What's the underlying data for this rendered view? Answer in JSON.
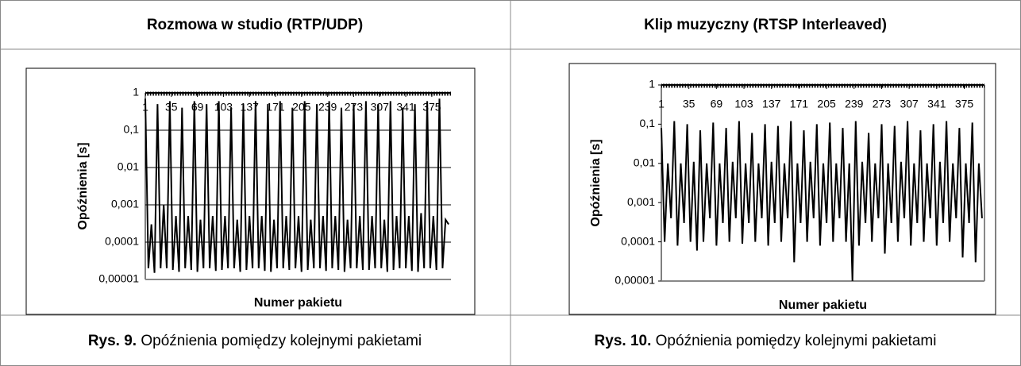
{
  "table": {
    "headers": [
      "Rozmowa w studio (RTP/UDP)",
      "Klip muzyczny (RTSP Interleaved)"
    ],
    "captions": [
      {
        "label": "Rys. 9.",
        "text": "Opóźnienia pomiędzy kolejnymi pakietami"
      },
      {
        "label": "Rys. 10.",
        "text": "Opóźnienia pomiędzy kolejnymi pakietami"
      }
    ]
  },
  "chart_data": [
    {
      "type": "line",
      "x_label": "Numer pakietu",
      "y_label": "Opóźnienia [s]",
      "log_scale": true,
      "grid": true,
      "xlim": [
        1,
        400
      ],
      "xticks": [
        1,
        35,
        69,
        103,
        137,
        171,
        205,
        239,
        273,
        307,
        341,
        375
      ],
      "ylim": [
        1e-05,
        1
      ],
      "yticks": [
        {
          "value": 1e-05,
          "label": "0,00001"
        },
        {
          "value": 0.0001,
          "label": "0,0001"
        },
        {
          "value": 0.001,
          "label": "0,001"
        },
        {
          "value": 0.01,
          "label": "0,01"
        },
        {
          "value": 0.1,
          "label": "0,1"
        },
        1
      ],
      "x": [
        1,
        5,
        9,
        13,
        17,
        21,
        25,
        29,
        33,
        37,
        41,
        45,
        49,
        53,
        57,
        61,
        65,
        69,
        73,
        77,
        81,
        85,
        89,
        93,
        97,
        101,
        105,
        109,
        113,
        117,
        121,
        125,
        129,
        133,
        137,
        141,
        145,
        149,
        153,
        157,
        161,
        165,
        169,
        173,
        177,
        181,
        185,
        189,
        193,
        197,
        201,
        205,
        209,
        213,
        217,
        221,
        225,
        229,
        233,
        237,
        241,
        245,
        249,
        253,
        257,
        261,
        265,
        269,
        273,
        277,
        281,
        285,
        289,
        293,
        297,
        301,
        305,
        309,
        313,
        317,
        321,
        325,
        329,
        333,
        337,
        341,
        345,
        349,
        353,
        357,
        361,
        365,
        369,
        373,
        377,
        381,
        385,
        389,
        393,
        397
      ],
      "series": [
        {
          "name": null,
          "color": "#000000",
          "values": [
            0.7,
            2e-05,
            0.0003,
            1.5e-05,
            0.5,
            2e-05,
            0.001,
            2e-05,
            0.6,
            1.8e-05,
            0.0005,
            1.6e-05,
            0.4,
            2e-05,
            0.0005,
            1.8e-05,
            0.6,
            1.6e-05,
            0.0004,
            2e-05,
            0.5,
            2e-05,
            0.0005,
            1.7e-05,
            0.6,
            1.8e-05,
            0.0005,
            2e-05,
            0.4,
            2e-05,
            0.0004,
            1.6e-05,
            0.5,
            1.8e-05,
            0.0005,
            2e-05,
            0.6,
            2e-05,
            0.0005,
            1.7e-05,
            0.5,
            1.6e-05,
            0.0004,
            2e-05,
            0.6,
            2e-05,
            0.0005,
            1.8e-05,
            0.4,
            2e-05,
            0.0005,
            1.6e-05,
            0.6,
            1.8e-05,
            0.0004,
            2e-05,
            0.5,
            2e-05,
            0.0005,
            1.7e-05,
            0.6,
            2e-05,
            0.0005,
            1.8e-05,
            0.4,
            1.6e-05,
            0.0004,
            2e-05,
            0.5,
            2e-05,
            0.0005,
            1.8e-05,
            0.6,
            1.8e-05,
            0.0005,
            2e-05,
            0.5,
            2e-05,
            0.0004,
            1.6e-05,
            0.6,
            1.8e-05,
            0.0005,
            2e-05,
            0.4,
            2e-05,
            0.0005,
            1.7e-05,
            0.5,
            1.6e-05,
            0.0006,
            2e-05,
            0.6,
            2e-05,
            0.0005,
            1.8e-05,
            0.7,
            2e-05,
            0.0004,
            0.0003
          ]
        }
      ]
    },
    {
      "type": "line",
      "x_label": "Numer pakietu",
      "y_label": "Opóźnienia [s]",
      "log_scale": true,
      "grid": false,
      "xlim": [
        1,
        400
      ],
      "xticks": [
        1,
        35,
        69,
        103,
        137,
        171,
        205,
        239,
        273,
        307,
        341,
        375
      ],
      "ylim": [
        1e-05,
        1
      ],
      "yticks": [
        {
          "value": 1e-05,
          "label": "0,00001"
        },
        {
          "value": 0.0001,
          "label": "0,0001"
        },
        {
          "value": 0.001,
          "label": "0,001"
        },
        {
          "value": 0.01,
          "label": "0,01"
        },
        {
          "value": 0.1,
          "label": "0,1"
        },
        1
      ],
      "x": [
        1,
        5,
        9,
        13,
        17,
        21,
        25,
        29,
        33,
        37,
        41,
        45,
        49,
        53,
        57,
        61,
        65,
        69,
        73,
        77,
        81,
        85,
        89,
        93,
        97,
        101,
        105,
        109,
        113,
        117,
        121,
        125,
        129,
        133,
        137,
        141,
        145,
        149,
        153,
        157,
        161,
        165,
        169,
        173,
        177,
        181,
        185,
        189,
        193,
        197,
        201,
        205,
        209,
        213,
        217,
        221,
        225,
        229,
        233,
        237,
        241,
        245,
        249,
        253,
        257,
        261,
        265,
        269,
        273,
        277,
        281,
        285,
        289,
        293,
        297,
        301,
        305,
        309,
        313,
        317,
        321,
        325,
        329,
        333,
        337,
        341,
        345,
        349,
        353,
        357,
        361,
        365,
        369,
        373,
        377,
        381,
        385,
        389,
        393,
        397
      ],
      "series": [
        {
          "name": null,
          "color": "#000000",
          "values": [
            0.08,
            0.0001,
            0.01,
            0.0004,
            0.12,
            8e-05,
            0.01,
            0.0003,
            0.1,
            0.0001,
            0.011,
            6e-05,
            0.07,
            0.0001,
            0.01,
            0.0004,
            0.11,
            8e-05,
            0.01,
            0.0003,
            0.08,
            0.0001,
            0.011,
            0.0004,
            0.12,
            9e-05,
            0.01,
            0.0003,
            0.06,
            0.0001,
            0.01,
            0.0004,
            0.1,
            8e-05,
            0.011,
            0.0003,
            0.09,
            0.0001,
            0.01,
            0.0004,
            0.12,
            3e-05,
            0.01,
            0.0003,
            0.07,
            0.0001,
            0.011,
            0.0004,
            0.1,
            8e-05,
            0.01,
            0.0003,
            0.11,
            0.0001,
            0.01,
            0.0004,
            0.08,
            0.0001,
            0.01,
            1e-05,
            0.12,
            8e-05,
            0.011,
            0.0003,
            0.06,
            0.0001,
            0.01,
            0.0004,
            0.1,
            5e-05,
            0.01,
            0.0003,
            0.09,
            0.0001,
            0.011,
            0.0004,
            0.12,
            8e-05,
            0.01,
            0.0003,
            0.07,
            0.0001,
            0.01,
            0.0004,
            0.1,
            8e-05,
            0.011,
            0.0003,
            0.12,
            0.0001,
            0.01,
            0.0004,
            0.08,
            4e-05,
            0.01,
            0.0003,
            0.11,
            3e-05,
            0.01,
            0.0004
          ]
        }
      ]
    }
  ]
}
